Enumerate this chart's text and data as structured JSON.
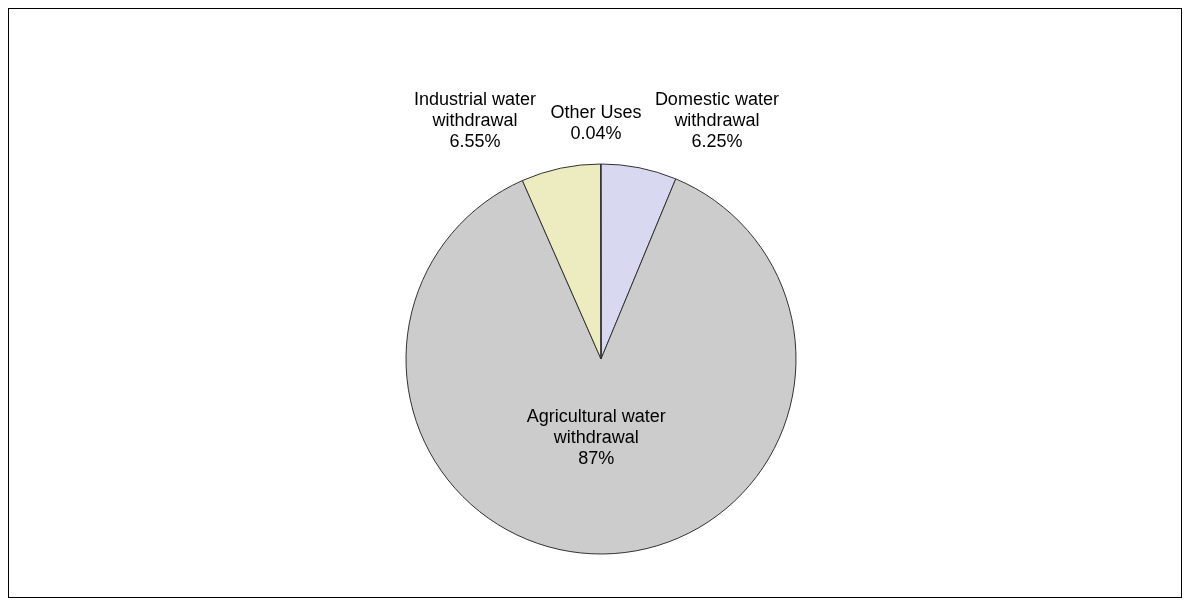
{
  "chart_data": {
    "type": "pie",
    "categories": [
      "Domestic water withdrawal",
      "Agricultural water withdrawal",
      "Industrial water withdrawal",
      "Other Uses"
    ],
    "values": [
      6.25,
      87,
      6.55,
      0.04
    ],
    "colors": [
      "#d8d8f0",
      "#cccccc",
      "#ececc0",
      "#ffffff"
    ],
    "value_labels": [
      "6.25%",
      "87%",
      "6.55%",
      "0.04%"
    ],
    "legend": false
  }
}
